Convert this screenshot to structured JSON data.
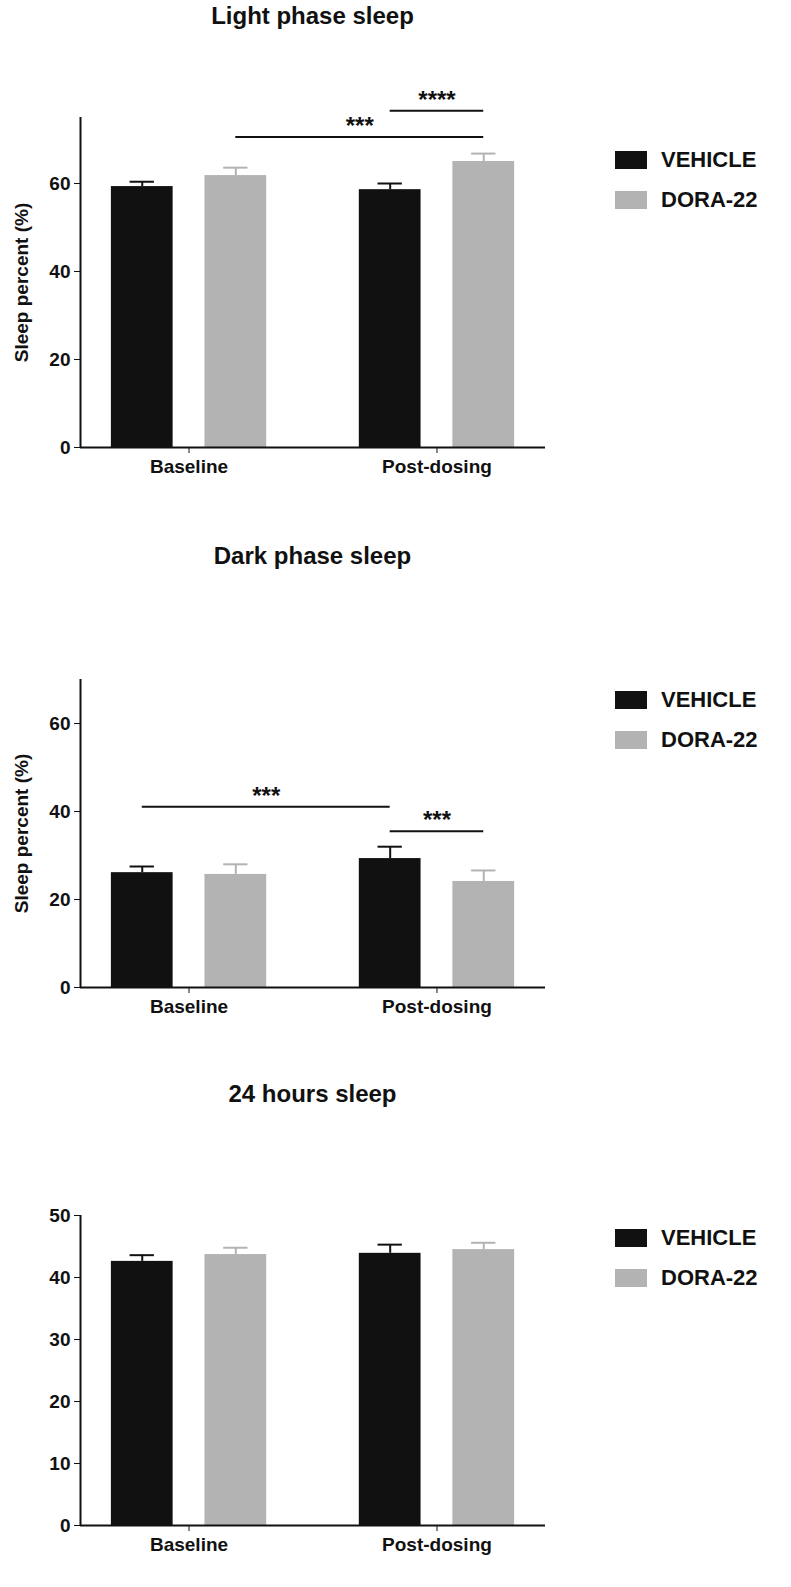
{
  "chart_data": [
    {
      "type": "bar",
      "title": "Light phase sleep",
      "y_label": "Sleep percent (%)",
      "categories": [
        "Baseline",
        "Post-dosing"
      ],
      "series": [
        {
          "name": "VEHICLE",
          "color": "#111111",
          "values": [
            59.3,
            58.6
          ],
          "errors": [
            1.1,
            1.4
          ]
        },
        {
          "name": "DORA-22",
          "color": "#b3b3b3",
          "values": [
            61.8,
            65.0
          ],
          "errors": [
            1.8,
            1.8
          ]
        }
      ],
      "ylim": [
        0,
        75
      ],
      "yticks": [
        0,
        20,
        40,
        60
      ],
      "legend": "right",
      "annotations": [
        {
          "text": "***",
          "from": {
            "category": "Baseline",
            "series": "DORA-22"
          },
          "to": {
            "category": "Post-dosing",
            "series": "DORA-22"
          }
        },
        {
          "text": "****",
          "from": {
            "category": "Post-dosing",
            "series": "VEHICLE"
          },
          "to": {
            "category": "Post-dosing",
            "series": "DORA-22"
          }
        }
      ]
    },
    {
      "type": "bar",
      "title": "Dark phase sleep",
      "y_label": "Sleep percent (%)",
      "categories": [
        "Baseline",
        "Post-dosing"
      ],
      "series": [
        {
          "name": "VEHICLE",
          "color": "#111111",
          "values": [
            26.1,
            29.3
          ],
          "errors": [
            1.4,
            2.7
          ]
        },
        {
          "name": "DORA-22",
          "color": "#b3b3b3",
          "values": [
            25.7,
            24.1
          ],
          "errors": [
            2.3,
            2.5
          ]
        }
      ],
      "ylim": [
        0,
        70
      ],
      "yticks": [
        0,
        20,
        40,
        60
      ],
      "legend": "right",
      "annotations": [
        {
          "text": "***",
          "from": {
            "category": "Post-dosing",
            "series": "VEHICLE"
          },
          "to": {
            "category": "Post-dosing",
            "series": "DORA-22"
          }
        },
        {
          "text": "***",
          "from": {
            "category": "Baseline",
            "series": "VEHICLE"
          },
          "to": {
            "category": "Post-dosing",
            "series": "VEHICLE"
          }
        }
      ]
    },
    {
      "type": "bar",
      "title": "24 hours sleep",
      "categories": [
        "Baseline",
        "Post-dosing"
      ],
      "series": [
        {
          "name": "VEHICLE",
          "color": "#111111",
          "values": [
            42.6,
            43.9
          ],
          "errors": [
            1.0,
            1.4
          ]
        },
        {
          "name": "DORA-22",
          "color": "#b3b3b3",
          "values": [
            43.7,
            44.5
          ],
          "errors": [
            1.1,
            1.1
          ]
        }
      ],
      "ylim": [
        0,
        50
      ],
      "yticks": [
        0,
        10,
        20,
        30,
        40,
        50
      ],
      "legend": "right"
    }
  ]
}
